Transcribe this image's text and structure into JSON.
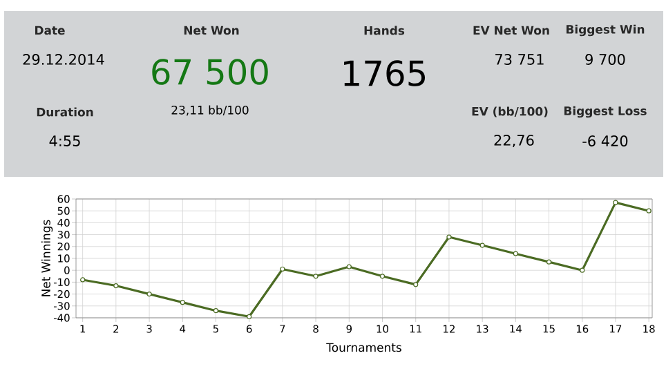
{
  "chart_data": [
    {
      "type": "other",
      "annotations": [
        "Date",
        "29.12.2014",
        "Duration",
        "4:55",
        "Net Won",
        "67 500",
        "23,11 bb/100",
        "Hands",
        "1765",
        "EV Net Won",
        "73 751",
        "Biggest Win",
        "9 700",
        "EV (bb/100)",
        "22,76",
        "Biggest Loss",
        "-6 420"
      ]
    },
    {
      "type": "line",
      "xlabel": "Tournaments",
      "ylabel": "Net Winnings",
      "x": [
        1,
        2,
        3,
        4,
        5,
        6,
        7,
        8,
        9,
        10,
        11,
        12,
        13,
        14,
        15,
        16,
        17,
        18
      ],
      "series": [
        {
          "color": "#4b6b23",
          "values": [
            -8,
            -13,
            -20,
            -27,
            -34,
            -39,
            1,
            -5,
            3,
            -5,
            -12,
            28,
            21,
            14,
            7,
            0,
            57,
            50
          ]
        }
      ],
      "xlim": [
        0.8,
        18.1
      ],
      "ylim": [
        -40,
        60
      ],
      "xticks": [
        1,
        2,
        3,
        4,
        5,
        6,
        7,
        8,
        9,
        10,
        11,
        12,
        13,
        14,
        15,
        16,
        17,
        18
      ],
      "yticks": [
        -40,
        -30,
        -20,
        -10,
        0,
        10,
        20,
        30,
        40,
        50,
        60
      ],
      "grid": true,
      "marker": "circle",
      "line_style": "solid"
    }
  ]
}
